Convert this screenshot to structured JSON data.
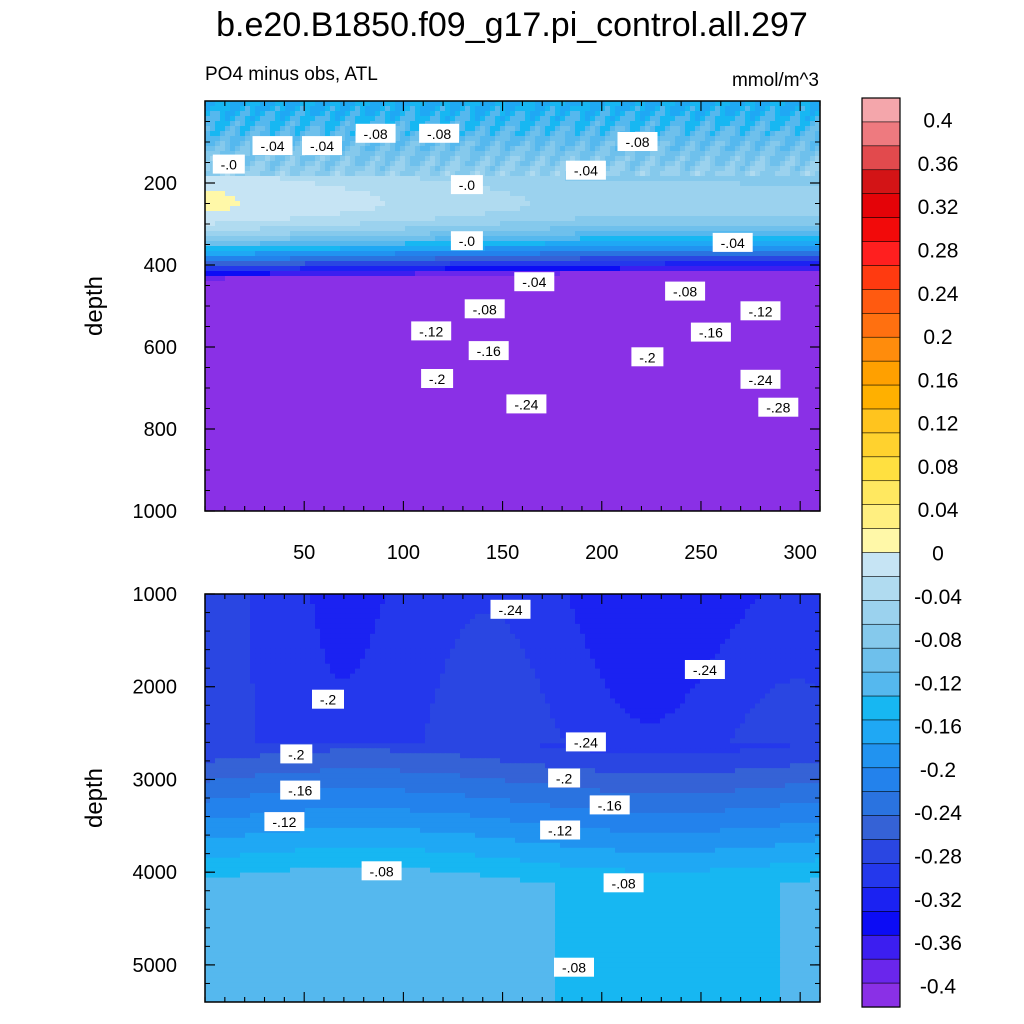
{
  "title": "b.e20.B1850.f09_g17.pi_control.all.297",
  "subtitle_left": "PO4 minus obs, ATL",
  "subtitle_right": "mmol/m^3",
  "colors": {
    "levels": [
      "#f4a6ab",
      "#ee7a7f",
      "#e24a4d",
      "#d31416",
      "#e40308",
      "#f20a0a",
      "#ff1f1f",
      "#ff3a10",
      "#ff5a10",
      "#ff7010",
      "#ff8c0c",
      "#ffa000",
      "#ffb000",
      "#ffc41e",
      "#ffd22e",
      "#ffe040",
      "#ffe860",
      "#ffef80",
      "#fff8a8",
      "#c6e4f4",
      "#b0dbf0",
      "#9bd2ee",
      "#85c9ec",
      "#6ec0ec",
      "#55b8ee",
      "#17b7f2",
      "#1fa8f4",
      "#2193f0",
      "#2382ec",
      "#2a73e0",
      "#3562d6",
      "#2a46e2",
      "#2438ec",
      "#1b22f2",
      "#0c0cf5",
      "#3c1ef0",
      "#6a26ec",
      "#8a30e6"
    ],
    "frame": "#000000",
    "contour": "#333333"
  },
  "chart_data": [
    {
      "type": "contour",
      "name": "upper-panel",
      "xlabel": "",
      "ylabel": "depth",
      "xlim": [
        0,
        310
      ],
      "ylim": [
        1000,
        0
      ],
      "xticks": [
        50,
        100,
        150,
        200,
        250,
        300
      ],
      "yticks": [
        200,
        400,
        600,
        800,
        1000
      ],
      "contour_labels": [
        {
          "text": "-.04",
          "x": 34,
          "y": 110
        },
        {
          "text": "-.04",
          "x": 59,
          "y": 110
        },
        {
          "text": "-.08",
          "x": 86,
          "y": 80
        },
        {
          "text": "-.08",
          "x": 118,
          "y": 80
        },
        {
          "text": "-.08",
          "x": 218,
          "y": 100
        },
        {
          "text": "-.0",
          "x": 12,
          "y": 155
        },
        {
          "text": "-.04",
          "x": 192,
          "y": 170
        },
        {
          "text": "-.0",
          "x": 132,
          "y": 205
        },
        {
          "text": "-.0",
          "x": 132,
          "y": 342
        },
        {
          "text": "-.04",
          "x": 266,
          "y": 346
        },
        {
          "text": "-.04",
          "x": 166,
          "y": 442
        },
        {
          "text": "-.08",
          "x": 242,
          "y": 465
        },
        {
          "text": "-.08",
          "x": 141,
          "y": 508
        },
        {
          "text": "-.12",
          "x": 280,
          "y": 513
        },
        {
          "text": "-.12",
          "x": 114,
          "y": 562
        },
        {
          "text": "-.16",
          "x": 255,
          "y": 565
        },
        {
          "text": "-.16",
          "x": 143,
          "y": 610
        },
        {
          "text": "-.2",
          "x": 223,
          "y": 625
        },
        {
          "text": "-.2",
          "x": 117,
          "y": 678
        },
        {
          "text": "-.24",
          "x": 280,
          "y": 680
        },
        {
          "text": "-.24",
          "x": 162,
          "y": 740
        },
        {
          "text": "-.28",
          "x": 289,
          "y": 748
        }
      ]
    },
    {
      "type": "contour",
      "name": "lower-panel",
      "xlabel": "",
      "ylabel": "depth",
      "xlim": [
        0,
        310
      ],
      "ylim": [
        5400,
        1000
      ],
      "xticks": [],
      "yticks": [
        1000,
        2000,
        3000,
        4000,
        5000
      ],
      "contour_labels": [
        {
          "text": "-.24",
          "x": 154,
          "y": 1170
        },
        {
          "text": "-.24",
          "x": 252,
          "y": 1820
        },
        {
          "text": "-.2",
          "x": 62,
          "y": 2140
        },
        {
          "text": "-.24",
          "x": 192,
          "y": 2600
        },
        {
          "text": "-.2",
          "x": 46,
          "y": 2730
        },
        {
          "text": "-.2",
          "x": 181,
          "y": 2990
        },
        {
          "text": "-.16",
          "x": 48,
          "y": 3120
        },
        {
          "text": "-.16",
          "x": 204,
          "y": 3280
        },
        {
          "text": "-.12",
          "x": 40,
          "y": 3460
        },
        {
          "text": "-.12",
          "x": 179,
          "y": 3550
        },
        {
          "text": "-.08",
          "x": 89,
          "y": 3990
        },
        {
          "text": "-.08",
          "x": 211,
          "y": 4120
        },
        {
          "text": "-.08",
          "x": 186,
          "y": 5030
        }
      ]
    }
  ],
  "colorbar": {
    "labels": [
      "0.4",
      "0.36",
      "0.32",
      "0.28",
      "0.24",
      "0.2",
      "0.16",
      "0.12",
      "0.08",
      "0.04",
      "0",
      "-0.04",
      "-0.08",
      "-0.12",
      "-0.16",
      "-0.2",
      "-0.24",
      "-0.28",
      "-0.32",
      "-0.36",
      "-0.4"
    ],
    "min": -0.42,
    "max": 0.42,
    "step": 0.02
  }
}
